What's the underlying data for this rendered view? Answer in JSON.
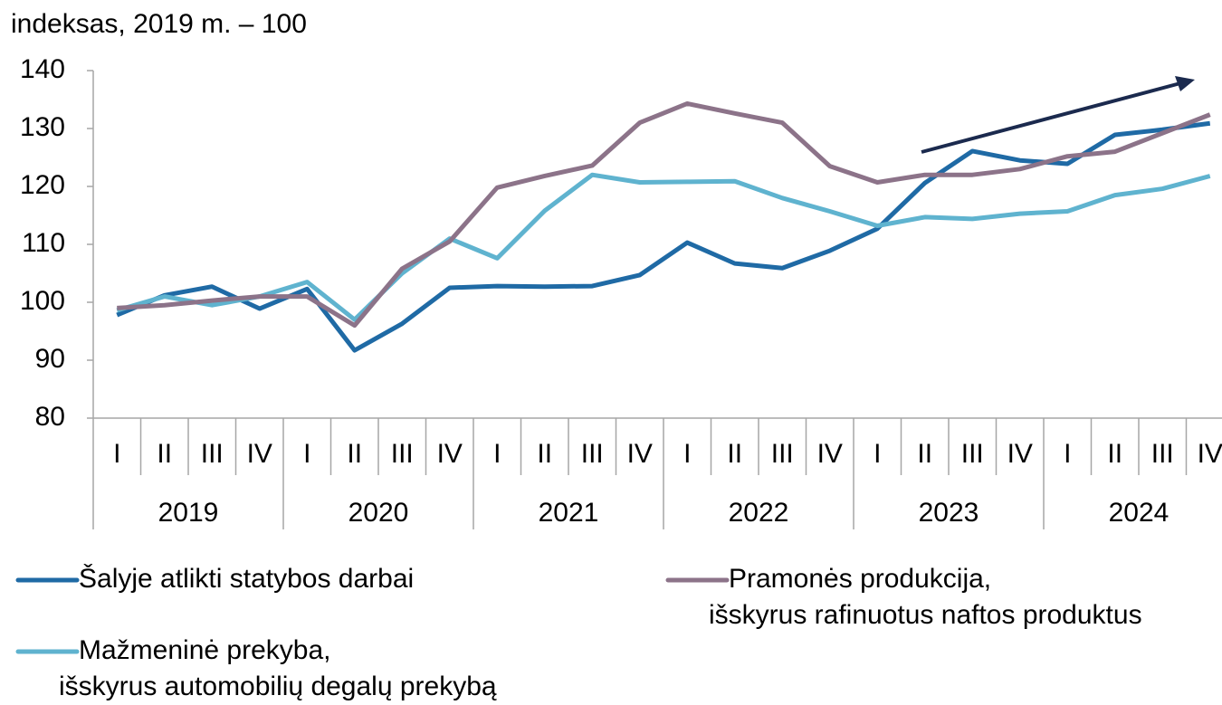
{
  "chart_data": {
    "type": "line",
    "ylabel": "indeksas, 2019 m. – 100",
    "categories": [
      "I",
      "II",
      "III",
      "IV",
      "I",
      "II",
      "III",
      "IV",
      "I",
      "II",
      "III",
      "IV",
      "I",
      "II",
      "III",
      "IV",
      "I",
      "II",
      "III",
      "IV",
      "I",
      "II",
      "III",
      "IV"
    ],
    "years": [
      "2019",
      "2020",
      "2021",
      "2022",
      "2023",
      "2024"
    ],
    "ylim": [
      80,
      140
    ],
    "yticks": [
      80,
      90,
      100,
      110,
      120,
      130,
      140
    ],
    "series": [
      {
        "name": "Šalyje atlikti statybos darbai",
        "color": "#1f6aa5",
        "values": [
          97.8,
          101.2,
          102.7,
          98.9,
          102.3,
          91.7,
          96.3,
          102.5,
          102.8,
          102.7,
          102.8,
          104.7,
          110.3,
          106.7,
          105.9,
          108.9,
          112.7,
          120.6,
          126.1,
          124.5,
          123.9,
          128.9,
          129.8,
          130.9
        ]
      },
      {
        "name": "Pramonės produkcija,\nišskyrus rafinuotus naftos produktus",
        "color": "#8c7389",
        "values": [
          99,
          99.5,
          100.3,
          101,
          101,
          96,
          105.8,
          110.5,
          119.8,
          121.8,
          123.6,
          131,
          134.3,
          132.6,
          131,
          123.5,
          120.7,
          122,
          122,
          123,
          125.2,
          126,
          129.2,
          132.4
        ]
      },
      {
        "name": "Mažmeninė prekyba,\nišskyrus automobilių degalų prekybą",
        "color": "#5fb3cf",
        "values": [
          98.6,
          101,
          99.5,
          101,
          103.5,
          97,
          105,
          111,
          107.6,
          115.8,
          122,
          120.7,
          120.8,
          120.9,
          118,
          115.7,
          113.2,
          114.7,
          114.4,
          115.3,
          115.7,
          118.5,
          119.6,
          121.8
        ]
      }
    ]
  }
}
